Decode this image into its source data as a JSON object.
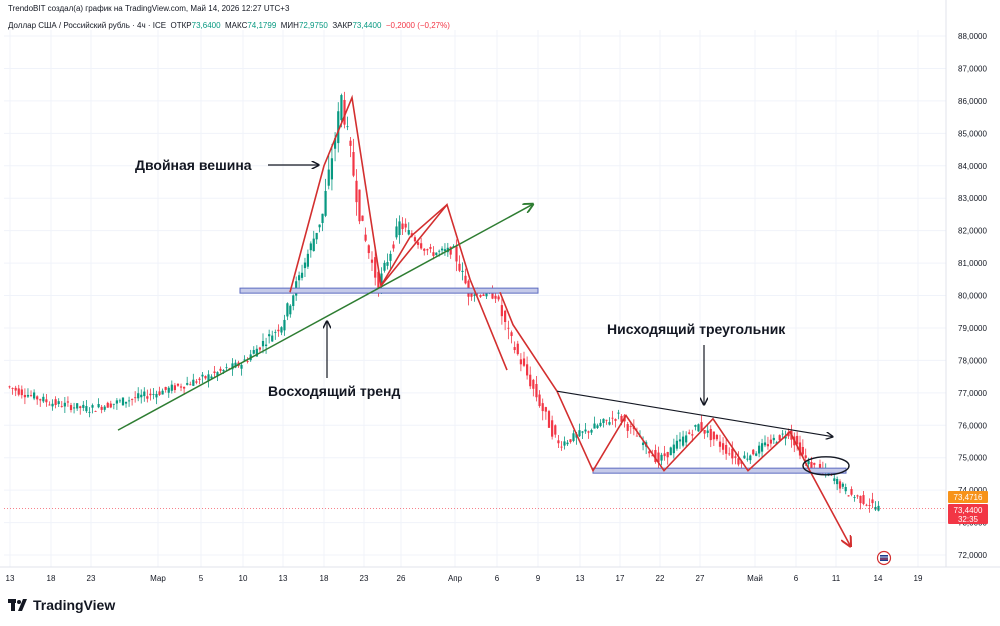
{
  "header": {
    "creator_line": "TrendoBIT создал(а) график на TradingView.com, Май 14, 2026 12:27 UTC+3",
    "symbol": "Доллар США / Российский рубль · 4ч · ICE",
    "open_label": "ОТКР",
    "open_value": "73,6400",
    "high_label": "МАКС",
    "high_value": "74,1799",
    "low_label": "МИН",
    "low_value": "72,9750",
    "close_label": "ЗАКР",
    "close_value": "73,4400",
    "change": "−0,2000 (−0,27%)"
  },
  "brand": {
    "name": "TradingView",
    "icon": "tradingview-logo-icon"
  },
  "colors": {
    "up": "#089981",
    "down": "#f23645",
    "pattern": "#d32f2f",
    "trend": "#2e7d32",
    "level_fill": "#c5cae9",
    "level_stroke": "#5c6bc0",
    "grid": "#f0f3fa",
    "text": "#131722",
    "price_tag_prev": "#f7931a",
    "price_tag_last": "#f23645"
  },
  "chart_data": {
    "type": "candlestick",
    "title": "Доллар США / Российский рубль · 4ч · ICE",
    "ylim": [
      71.5,
      88.2
    ],
    "y_ticks": [
      "88,0000",
      "87,0000",
      "86,0000",
      "85,0000",
      "84,0000",
      "83,0000",
      "82,0000",
      "81,0000",
      "80,0000",
      "79,0000",
      "78,0000",
      "77,0000",
      "76,0000",
      "75,0000",
      "74,0000",
      "73,0000",
      "72,0000"
    ],
    "x_ticks": [
      "13",
      "18",
      "23",
      "Мар",
      "5",
      "10",
      "13",
      "18",
      "23",
      "26",
      "Апр",
      "6",
      "9",
      "13",
      "17",
      "22",
      "27",
      "Май",
      "6",
      "11",
      "14",
      "19"
    ],
    "price_path": [
      {
        "t": "13",
        "p": 77.2
      },
      {
        "t": "18",
        "p": 76.7
      },
      {
        "t": "23",
        "p": 76.5
      },
      {
        "t": "Мар",
        "p": 77.0
      },
      {
        "t": "5",
        "p": 77.4
      },
      {
        "t": "10",
        "p": 77.9
      },
      {
        "t": "13",
        "p": 79.1
      },
      {
        "t": "18",
        "p": 82.5
      },
      {
        "t": "20",
        "p": 86.1
      },
      {
        "t": "23",
        "p": 82.0
      },
      {
        "t": "24",
        "p": 80.3
      },
      {
        "t": "27",
        "p": 82.2
      },
      {
        "t": "30",
        "p": 81.3
      },
      {
        "t": "Апр",
        "p": 81.4
      },
      {
        "t": "3",
        "p": 80.1
      },
      {
        "t": "7",
        "p": 80.0
      },
      {
        "t": "8",
        "p": 78.8
      },
      {
        "t": "10",
        "p": 76.9
      },
      {
        "t": "13",
        "p": 75.4
      },
      {
        "t": "17",
        "p": 76.3
      },
      {
        "t": "22",
        "p": 74.9
      },
      {
        "t": "27",
        "p": 76.0
      },
      {
        "t": "1",
        "p": 74.9
      },
      {
        "t": "6",
        "p": 75.8
      },
      {
        "t": "9",
        "p": 74.8
      },
      {
        "t": "11",
        "p": 74.5
      },
      {
        "t": "13",
        "p": 73.9
      },
      {
        "t": "14",
        "p": 73.44
      }
    ],
    "levels": [
      {
        "name": "resistance-80",
        "price": 80.15
      },
      {
        "name": "support-74.6",
        "price": 74.6
      }
    ],
    "annotations": [
      {
        "text": "Двойная вешина"
      },
      {
        "text": "Восходящий тренд"
      },
      {
        "text": "Нисходящий треугольник"
      }
    ],
    "price_tags": [
      {
        "value": "73,4716"
      },
      {
        "value": "73,4400",
        "sub": "32:35"
      }
    ]
  }
}
